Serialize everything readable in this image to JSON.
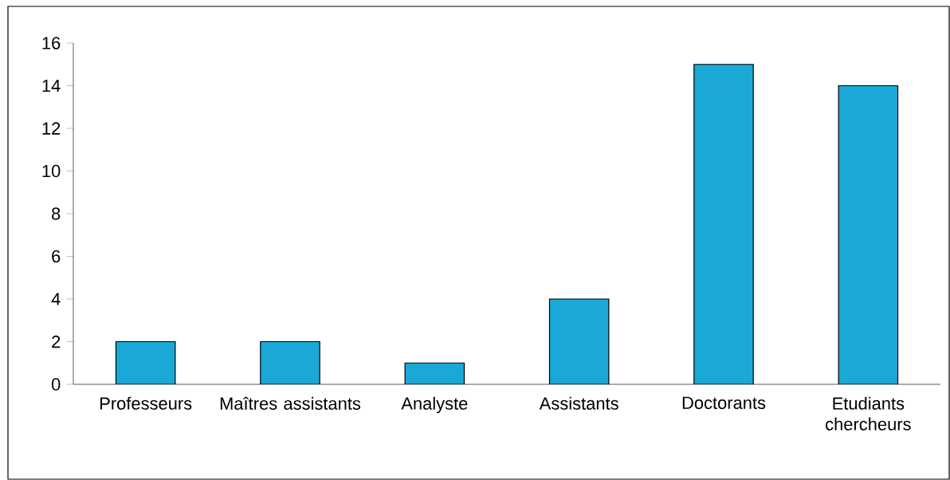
{
  "chart_data": {
    "type": "bar",
    "categories": [
      "Professeurs",
      "Maîtres assistants",
      "Analyste",
      "Assistants",
      "Doctorants",
      "Etudiants chercheurs"
    ],
    "values": [
      2,
      2,
      1,
      4,
      15,
      14
    ],
    "color": "#1aa9d6",
    "ylim": [
      0,
      16
    ],
    "yticks": [
      0,
      2,
      4,
      6,
      8,
      10,
      12,
      14,
      16
    ],
    "grid": false
  }
}
